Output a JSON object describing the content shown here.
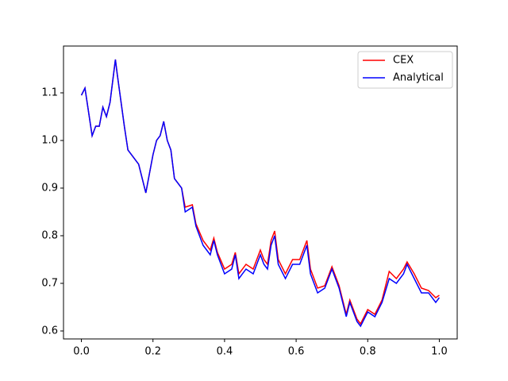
{
  "chart_data": {
    "type": "line",
    "x": [
      0,
      0.01,
      0.02,
      0.03,
      0.04,
      0.05,
      0.06,
      0.07,
      0.08,
      0.09,
      0.095,
      0.1,
      0.12,
      0.13,
      0.15,
      0.16,
      0.18,
      0.2,
      0.21,
      0.22,
      0.23,
      0.24,
      0.25,
      0.26,
      0.28,
      0.29,
      0.31,
      0.32,
      0.34,
      0.36,
      0.37,
      0.38,
      0.4,
      0.42,
      0.43,
      0.44,
      0.46,
      0.48,
      0.5,
      0.51,
      0.52,
      0.53,
      0.54,
      0.55,
      0.57,
      0.59,
      0.61,
      0.63,
      0.64,
      0.66,
      0.68,
      0.7,
      0.72,
      0.74,
      0.75,
      0.77,
      0.78,
      0.8,
      0.82,
      0.84,
      0.86,
      0.88,
      0.9,
      0.91,
      0.93,
      0.95,
      0.97,
      0.99,
      1.0
    ],
    "series": [
      {
        "name": "CEX",
        "color": "#ff0000",
        "values": [
          1.095,
          1.11,
          1.06,
          1.01,
          1.03,
          1.03,
          1.07,
          1.05,
          1.08,
          1.14,
          1.17,
          1.14,
          1.03,
          0.98,
          0.96,
          0.95,
          0.89,
          0.97,
          1.0,
          1.01,
          1.04,
          1.0,
          0.98,
          0.92,
          0.9,
          0.86,
          0.865,
          0.825,
          0.79,
          0.77,
          0.795,
          0.765,
          0.73,
          0.74,
          0.765,
          0.72,
          0.74,
          0.73,
          0.77,
          0.75,
          0.74,
          0.79,
          0.81,
          0.75,
          0.72,
          0.75,
          0.75,
          0.79,
          0.73,
          0.69,
          0.695,
          0.735,
          0.695,
          0.635,
          0.665,
          0.625,
          0.615,
          0.645,
          0.635,
          0.665,
          0.725,
          0.71,
          0.73,
          0.745,
          0.72,
          0.69,
          0.685,
          0.67,
          0.675
        ]
      },
      {
        "name": "Analytical",
        "color": "#0000ff",
        "values": [
          1.095,
          1.11,
          1.06,
          1.01,
          1.03,
          1.03,
          1.07,
          1.05,
          1.08,
          1.14,
          1.17,
          1.14,
          1.03,
          0.98,
          0.96,
          0.95,
          0.89,
          0.97,
          1.0,
          1.01,
          1.04,
          1.0,
          0.98,
          0.92,
          0.9,
          0.85,
          0.86,
          0.82,
          0.78,
          0.76,
          0.79,
          0.76,
          0.72,
          0.73,
          0.76,
          0.71,
          0.73,
          0.72,
          0.76,
          0.74,
          0.73,
          0.78,
          0.8,
          0.74,
          0.71,
          0.74,
          0.74,
          0.78,
          0.72,
          0.68,
          0.69,
          0.73,
          0.69,
          0.63,
          0.66,
          0.62,
          0.61,
          0.64,
          0.63,
          0.66,
          0.71,
          0.7,
          0.72,
          0.74,
          0.71,
          0.68,
          0.68,
          0.66,
          0.67
        ]
      }
    ],
    "xlim": [
      -0.05,
      1.05
    ],
    "ylim": [
      0.5833,
      1.1983
    ],
    "xticks": [
      {
        "value": 0,
        "label": "0.0"
      },
      0.2,
      0.4,
      0.6,
      0.8,
      {
        "value": 1,
        "label": "1.0"
      }
    ],
    "yticks": [
      0.6,
      0.7,
      0.8,
      0.9,
      {
        "value": 1,
        "label": "1.0"
      },
      1.1
    ],
    "legend": "upper right",
    "grid": false
  }
}
